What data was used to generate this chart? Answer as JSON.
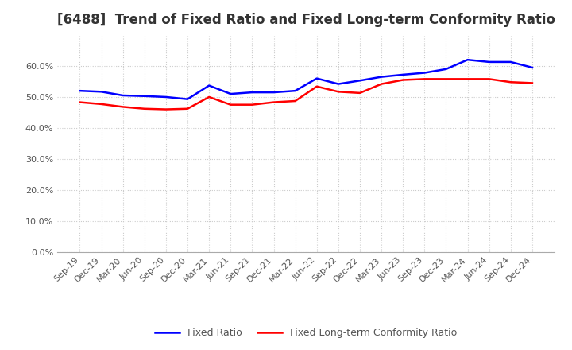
{
  "title": "[6488]  Trend of Fixed Ratio and Fixed Long-term Conformity Ratio",
  "x_labels": [
    "Sep-19",
    "Dec-19",
    "Mar-20",
    "Jun-20",
    "Sep-20",
    "Dec-20",
    "Mar-21",
    "Jun-21",
    "Sep-21",
    "Dec-21",
    "Mar-22",
    "Jun-22",
    "Sep-22",
    "Dec-22",
    "Mar-23",
    "Jun-23",
    "Sep-23",
    "Dec-23",
    "Mar-24",
    "Jun-24",
    "Sep-24",
    "Dec-24"
  ],
  "fixed_ratio": [
    0.52,
    0.517,
    0.505,
    0.503,
    0.5,
    0.493,
    0.537,
    0.51,
    0.515,
    0.515,
    0.52,
    0.56,
    0.542,
    0.553,
    0.565,
    0.572,
    0.578,
    0.59,
    0.62,
    0.613,
    0.613,
    0.595
  ],
  "fixed_lt_ratio": [
    0.483,
    0.477,
    0.468,
    0.462,
    0.46,
    0.462,
    0.5,
    0.475,
    0.475,
    0.483,
    0.487,
    0.534,
    0.517,
    0.513,
    0.542,
    0.555,
    0.558,
    0.558,
    0.558,
    0.558,
    0.548,
    0.545
  ],
  "fixed_ratio_color": "#0000FF",
  "fixed_lt_ratio_color": "#FF0000",
  "ylim": [
    0.0,
    0.7
  ],
  "yticks": [
    0.0,
    0.1,
    0.2,
    0.3,
    0.4,
    0.5,
    0.6
  ],
  "background_color": "#ffffff",
  "grid_color": "#cccccc",
  "title_fontsize": 12,
  "legend_fontsize": 9,
  "tick_fontsize": 8
}
